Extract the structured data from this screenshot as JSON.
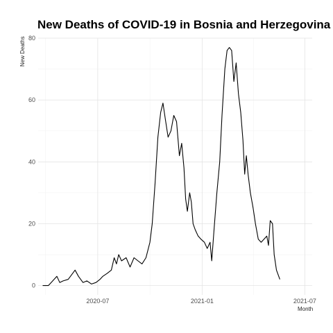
{
  "chart_data": {
    "type": "line",
    "title": "New Deaths of COVID-19 in Bosnia and Herzegovina",
    "xlabel": "Month",
    "ylabel": "New Deaths",
    "x_range": [
      "2020-03-18",
      "2021-07-14"
    ],
    "ylim": [
      -3,
      80
    ],
    "x_ticks": [
      {
        "date": "2020-07-01",
        "label": "2020-07"
      },
      {
        "date": "2021-01-01",
        "label": "2021-01"
      },
      {
        "date": "2021-07-01",
        "label": "2021-07"
      }
    ],
    "y_ticks": [
      {
        "value": 0,
        "label": "0"
      },
      {
        "value": 20,
        "label": "20"
      },
      {
        "value": 40,
        "label": "40"
      },
      {
        "value": 60,
        "label": "60"
      },
      {
        "value": 80,
        "label": "80"
      }
    ],
    "grid": true,
    "legend": "none",
    "line_color": "#000000",
    "series": [
      {
        "points": [
          [
            "2020-03-26",
            0
          ],
          [
            "2020-04-05",
            0
          ],
          [
            "2020-04-10",
            1
          ],
          [
            "2020-04-15",
            2
          ],
          [
            "2020-04-20",
            3
          ],
          [
            "2020-04-25",
            1
          ],
          [
            "2020-05-01",
            1.5
          ],
          [
            "2020-05-10",
            2
          ],
          [
            "2020-05-18",
            4
          ],
          [
            "2020-05-22",
            5
          ],
          [
            "2020-05-28",
            3
          ],
          [
            "2020-06-05",
            1
          ],
          [
            "2020-06-12",
            1.5
          ],
          [
            "2020-06-20",
            0.5
          ],
          [
            "2020-06-28",
            1
          ],
          [
            "2020-07-05",
            2
          ],
          [
            "2020-07-10",
            3
          ],
          [
            "2020-07-18",
            4
          ],
          [
            "2020-07-25",
            5
          ],
          [
            "2020-07-30",
            9
          ],
          [
            "2020-08-03",
            7
          ],
          [
            "2020-08-07",
            10
          ],
          [
            "2020-08-12",
            8
          ],
          [
            "2020-08-20",
            9
          ],
          [
            "2020-08-27",
            6
          ],
          [
            "2020-09-03",
            9
          ],
          [
            "2020-09-10",
            8
          ],
          [
            "2020-09-17",
            7
          ],
          [
            "2020-09-24",
            9
          ],
          [
            "2020-10-01",
            14
          ],
          [
            "2020-10-05",
            20
          ],
          [
            "2020-10-10",
            33
          ],
          [
            "2020-10-15",
            48
          ],
          [
            "2020-10-20",
            56
          ],
          [
            "2020-10-24",
            59
          ],
          [
            "2020-10-28",
            54
          ],
          [
            "2020-11-02",
            48
          ],
          [
            "2020-11-07",
            50
          ],
          [
            "2020-11-12",
            55
          ],
          [
            "2020-11-17",
            53
          ],
          [
            "2020-11-22",
            42
          ],
          [
            "2020-11-26",
            46
          ],
          [
            "2020-11-30",
            38
          ],
          [
            "2020-12-03",
            28
          ],
          [
            "2020-12-06",
            24
          ],
          [
            "2020-12-10",
            30
          ],
          [
            "2020-12-13",
            27
          ],
          [
            "2020-12-16",
            20
          ],
          [
            "2020-12-20",
            18
          ],
          [
            "2020-12-25",
            16
          ],
          [
            "2020-12-30",
            15
          ],
          [
            "2021-01-05",
            14
          ],
          [
            "2021-01-10",
            12
          ],
          [
            "2021-01-15",
            14
          ],
          [
            "2021-01-18",
            8
          ],
          [
            "2021-01-22",
            18
          ],
          [
            "2021-01-27",
            30
          ],
          [
            "2021-02-01",
            40
          ],
          [
            "2021-02-05",
            55
          ],
          [
            "2021-02-10",
            70
          ],
          [
            "2021-02-14",
            76
          ],
          [
            "2021-02-18",
            77
          ],
          [
            "2021-02-22",
            76
          ],
          [
            "2021-02-26",
            66
          ],
          [
            "2021-03-02",
            72
          ],
          [
            "2021-03-06",
            62
          ],
          [
            "2021-03-10",
            56
          ],
          [
            "2021-03-14",
            47
          ],
          [
            "2021-03-17",
            36
          ],
          [
            "2021-03-20",
            42
          ],
          [
            "2021-03-23",
            36
          ],
          [
            "2021-03-27",
            30
          ],
          [
            "2021-04-01",
            25
          ],
          [
            "2021-04-05",
            20
          ],
          [
            "2021-04-10",
            15
          ],
          [
            "2021-04-15",
            14
          ],
          [
            "2021-04-20",
            15
          ],
          [
            "2021-04-25",
            16
          ],
          [
            "2021-04-28",
            13
          ],
          [
            "2021-05-01",
            21
          ],
          [
            "2021-05-05",
            20
          ],
          [
            "2021-05-08",
            10
          ],
          [
            "2021-05-12",
            5
          ],
          [
            "2021-05-18",
            2
          ]
        ]
      }
    ]
  }
}
